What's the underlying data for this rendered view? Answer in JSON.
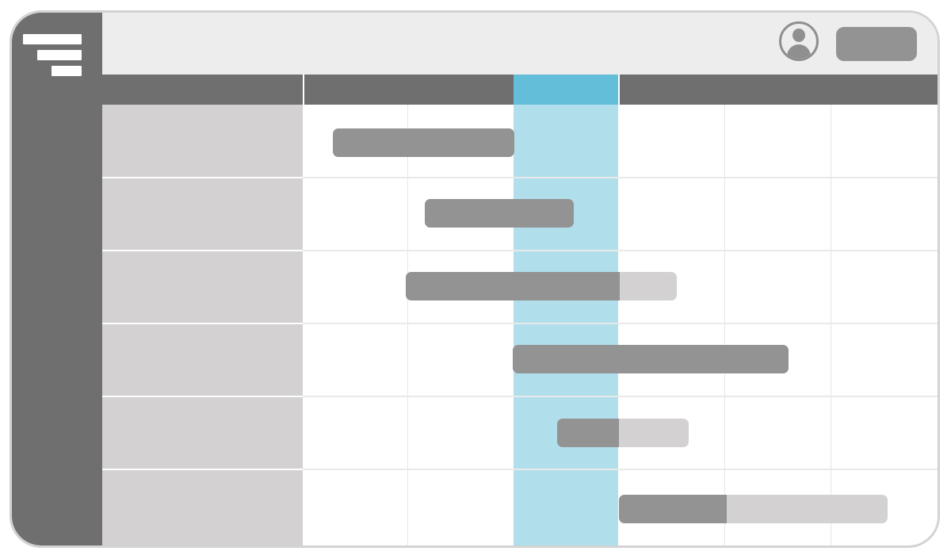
{
  "app": {
    "header": {
      "user_avatar_icon": "user-avatar-icon",
      "action_button_label": ""
    },
    "sidebar": {
      "logo_icon": "stacked-bars-logo-icon"
    },
    "timeline": {
      "columns": [
        {
          "label": ""
        },
        {
          "label": "",
          "highlighted": true
        },
        {
          "label": ""
        }
      ],
      "today_color": "#63bed9",
      "today_column_fill": "#b0dfeb",
      "bar_done_color": "#939393",
      "bar_remaining_color": "#d3d1d2",
      "tasks": [
        {
          "label": "",
          "progress": 1.0
        },
        {
          "label": "",
          "progress": 1.0
        },
        {
          "label": "",
          "progress": 0.79
        },
        {
          "label": "",
          "progress": 1.0
        },
        {
          "label": "",
          "progress": 0.47
        },
        {
          "label": "",
          "progress": 0.4
        }
      ]
    }
  }
}
